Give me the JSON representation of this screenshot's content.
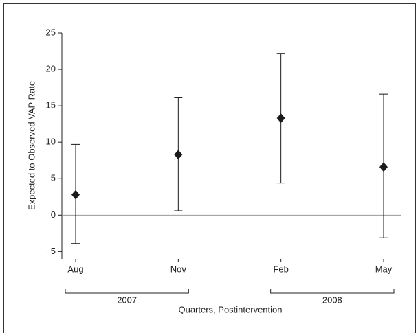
{
  "chart_data": {
    "type": "errorbar",
    "y_label": "Expected to Observed VAP Rate",
    "x_label": "Quarters, Postintervention",
    "categories": [
      "Aug",
      "Nov",
      "Feb",
      "May"
    ],
    "values": [
      2.8,
      8.3,
      13.3,
      6.6
    ],
    "lower": [
      -3.9,
      0.6,
      4.4,
      -3.1
    ],
    "upper": [
      9.7,
      16.1,
      22.2,
      16.6
    ],
    "groups": [
      {
        "label": "2007",
        "categories": [
          "Aug",
          "Nov"
        ]
      },
      {
        "label": "2008",
        "categories": [
          "Feb",
          "May"
        ]
      }
    ],
    "ylim": [
      -6,
      25
    ],
    "yticks": [
      {
        "value": -5,
        "label": "−5"
      },
      0,
      5,
      10,
      15,
      20,
      25
    ],
    "reference_line": 0,
    "color": "#1a1a1a",
    "reference_color": "#999999"
  }
}
